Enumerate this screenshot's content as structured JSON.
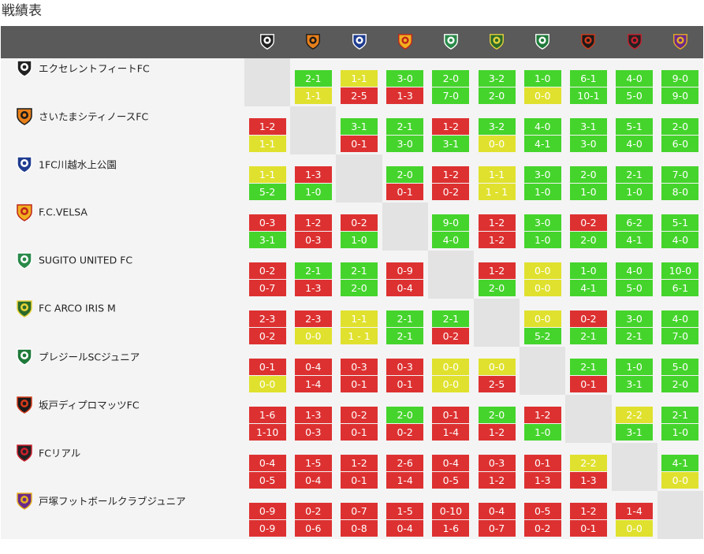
{
  "page": {
    "title": "戦績表"
  },
  "colors": {
    "win": "#45d42c",
    "loss": "#dd3131",
    "draw": "#e0e12e",
    "header": "#5a5a5a",
    "row_bg": "#f4f4f4",
    "diagonal": "#e3e3e3"
  },
  "teams": [
    {
      "name": "エクセレントフィートFC",
      "icon": "crest-effc-icon",
      "short": "EFFC",
      "c1": "#222222",
      "c2": "#ffffff"
    },
    {
      "name": "さいたまシティノースFC",
      "icon": "crest-scn-icon",
      "short": "SCN",
      "c1": "#e8801a",
      "c2": "#1a1a1a"
    },
    {
      "name": "1FC川越水上公園",
      "icon": "crest-1fc-icon",
      "short": "1",
      "c1": "#1f3c8f",
      "c2": "#ffffff"
    },
    {
      "name": "F.C.VELSA",
      "icon": "crest-velsa-icon",
      "short": "V",
      "c1": "#f0b020",
      "c2": "#c0241a"
    },
    {
      "name": "SUGITO UNITED FC",
      "icon": "crest-sugito-icon",
      "short": "S",
      "c1": "#2a8a4a",
      "c2": "#ffffff"
    },
    {
      "name": "FC ARCO IRIS M",
      "icon": "crest-arco-icon",
      "short": "AI",
      "c1": "#2b6a2a",
      "c2": "#e6d23a"
    },
    {
      "name": "プレジールSCジュニア",
      "icon": "crest-plaisir-icon",
      "short": "P",
      "c1": "#1f7a3a",
      "c2": "#ffffff"
    },
    {
      "name": "坂戸ディプロマッツFC",
      "icon": "crest-sakado-icon",
      "short": "D",
      "c1": "#1a1a1a",
      "c2": "#d43a1a"
    },
    {
      "name": "FCリアル",
      "icon": "crest-real-icon",
      "short": "R",
      "c1": "#222222",
      "c2": "#cc1f2e"
    },
    {
      "name": "戸塚フットボールクラブジュニア",
      "icon": "crest-totsuka-icon",
      "short": "T",
      "c1": "#6a2a8a",
      "c2": "#e6b020"
    }
  ],
  "results": [
    [
      null,
      [
        [
          "W",
          "2-1"
        ],
        [
          "D",
          "1-1"
        ]
      ],
      [
        [
          "D",
          "1-1"
        ],
        [
          "L",
          "2-5"
        ]
      ],
      [
        [
          "W",
          "3-0"
        ],
        [
          "L",
          "1-3"
        ]
      ],
      [
        [
          "W",
          "2-0"
        ],
        [
          "W",
          "7-0"
        ]
      ],
      [
        [
          "W",
          "3-2"
        ],
        [
          "W",
          "2-0"
        ]
      ],
      [
        [
          "W",
          "1-0"
        ],
        [
          "D",
          "0-0"
        ]
      ],
      [
        [
          "W",
          "6-1"
        ],
        [
          "W",
          "10-1"
        ]
      ],
      [
        [
          "W",
          "4-0"
        ],
        [
          "W",
          "5-0"
        ]
      ],
      [
        [
          "W",
          "9-0"
        ],
        [
          "W",
          "9-0"
        ]
      ]
    ],
    [
      [
        [
          "L",
          "1-2"
        ],
        [
          "D",
          "1-1"
        ]
      ],
      null,
      [
        [
          "W",
          "3-1"
        ],
        [
          "L",
          "0-1"
        ]
      ],
      [
        [
          "W",
          "2-1"
        ],
        [
          "W",
          "3-0"
        ]
      ],
      [
        [
          "L",
          "1-2"
        ],
        [
          "W",
          "3-1"
        ]
      ],
      [
        [
          "W",
          "3-2"
        ],
        [
          "D",
          "0-0"
        ]
      ],
      [
        [
          "W",
          "4-0"
        ],
        [
          "W",
          "4-1"
        ]
      ],
      [
        [
          "W",
          "3-1"
        ],
        [
          "W",
          "3-0"
        ]
      ],
      [
        [
          "W",
          "5-1"
        ],
        [
          "W",
          "4-0"
        ]
      ],
      [
        [
          "W",
          "2-0"
        ],
        [
          "W",
          "6-0"
        ]
      ]
    ],
    [
      [
        [
          "D",
          "1-1"
        ],
        [
          "W",
          "5-2"
        ]
      ],
      [
        [
          "L",
          "1-3"
        ],
        [
          "W",
          "1-0"
        ]
      ],
      null,
      [
        [
          "W",
          "2-0"
        ],
        [
          "L",
          "0-1"
        ]
      ],
      [
        [
          "L",
          "1-2"
        ],
        [
          "L",
          "0-2"
        ]
      ],
      [
        [
          "D",
          "1-1"
        ],
        [
          "D",
          "1 - 1"
        ]
      ],
      [
        [
          "W",
          "3-0"
        ],
        [
          "W",
          "1-0"
        ]
      ],
      [
        [
          "W",
          "2-0"
        ],
        [
          "W",
          "1-0"
        ]
      ],
      [
        [
          "W",
          "2-1"
        ],
        [
          "W",
          "1-0"
        ]
      ],
      [
        [
          "W",
          "7-0"
        ],
        [
          "W",
          "8-0"
        ]
      ]
    ],
    [
      [
        [
          "L",
          "0-3"
        ],
        [
          "W",
          "3-1"
        ]
      ],
      [
        [
          "L",
          "1-2"
        ],
        [
          "L",
          "0-3"
        ]
      ],
      [
        [
          "L",
          "0-2"
        ],
        [
          "W",
          "1-0"
        ]
      ],
      null,
      [
        [
          "W",
          "9-0"
        ],
        [
          "W",
          "4-0"
        ]
      ],
      [
        [
          "L",
          "1-2"
        ],
        [
          "L",
          "1-2"
        ]
      ],
      [
        [
          "W",
          "3-0"
        ],
        [
          "W",
          "1-0"
        ]
      ],
      [
        [
          "L",
          "0-2"
        ],
        [
          "W",
          "2-0"
        ]
      ],
      [
        [
          "W",
          "6-2"
        ],
        [
          "W",
          "4-1"
        ]
      ],
      [
        [
          "W",
          "5-1"
        ],
        [
          "W",
          "4-0"
        ]
      ]
    ],
    [
      [
        [
          "L",
          "0-2"
        ],
        [
          "L",
          "0-7"
        ]
      ],
      [
        [
          "W",
          "2-1"
        ],
        [
          "L",
          "1-3"
        ]
      ],
      [
        [
          "W",
          "2-1"
        ],
        [
          "W",
          "2-0"
        ]
      ],
      [
        [
          "L",
          "0-9"
        ],
        [
          "L",
          "0-4"
        ]
      ],
      null,
      [
        [
          "L",
          "1-2"
        ],
        [
          "W",
          "2-0"
        ]
      ],
      [
        [
          "D",
          "0-0"
        ],
        [
          "D",
          "0-0"
        ]
      ],
      [
        [
          "W",
          "1-0"
        ],
        [
          "W",
          "4-1"
        ]
      ],
      [
        [
          "W",
          "4-0"
        ],
        [
          "W",
          "5-0"
        ]
      ],
      [
        [
          "W",
          "10-0"
        ],
        [
          "W",
          "6-1"
        ]
      ]
    ],
    [
      [
        [
          "L",
          "2-3"
        ],
        [
          "L",
          "0-2"
        ]
      ],
      [
        [
          "L",
          "2-3"
        ],
        [
          "D",
          "0-0"
        ]
      ],
      [
        [
          "D",
          "1-1"
        ],
        [
          "D",
          "1 - 1"
        ]
      ],
      [
        [
          "W",
          "2-1"
        ],
        [
          "W",
          "2-1"
        ]
      ],
      [
        [
          "W",
          "2-1"
        ],
        [
          "L",
          "0-2"
        ]
      ],
      null,
      [
        [
          "D",
          "0-0"
        ],
        [
          "W",
          "5-2"
        ]
      ],
      [
        [
          "L",
          "0-2"
        ],
        [
          "W",
          "2-1"
        ]
      ],
      [
        [
          "W",
          "3-0"
        ],
        [
          "W",
          "2-1"
        ]
      ],
      [
        [
          "W",
          "4-0"
        ],
        [
          "W",
          "7-0"
        ]
      ]
    ],
    [
      [
        [
          "L",
          "0-1"
        ],
        [
          "D",
          "0-0"
        ]
      ],
      [
        [
          "L",
          "0-4"
        ],
        [
          "L",
          "1-4"
        ]
      ],
      [
        [
          "L",
          "0-3"
        ],
        [
          "L",
          "0-1"
        ]
      ],
      [
        [
          "L",
          "0-3"
        ],
        [
          "L",
          "0-1"
        ]
      ],
      [
        [
          "D",
          "0-0"
        ],
        [
          "D",
          "0-0"
        ]
      ],
      [
        [
          "D",
          "0-0"
        ],
        [
          "L",
          "2-5"
        ]
      ],
      null,
      [
        [
          "W",
          "2-1"
        ],
        [
          "L",
          "0-1"
        ]
      ],
      [
        [
          "W",
          "1-0"
        ],
        [
          "W",
          "3-1"
        ]
      ],
      [
        [
          "W",
          "5-0"
        ],
        [
          "W",
          "2-0"
        ]
      ]
    ],
    [
      [
        [
          "L",
          "1-6"
        ],
        [
          "L",
          "1-10"
        ]
      ],
      [
        [
          "L",
          "1-3"
        ],
        [
          "L",
          "0-3"
        ]
      ],
      [
        [
          "L",
          "0-2"
        ],
        [
          "L",
          "0-1"
        ]
      ],
      [
        [
          "W",
          "2-0"
        ],
        [
          "L",
          "0-2"
        ]
      ],
      [
        [
          "L",
          "0-1"
        ],
        [
          "L",
          "1-4"
        ]
      ],
      [
        [
          "W",
          "2-0"
        ],
        [
          "L",
          "1-2"
        ]
      ],
      [
        [
          "L",
          "1-2"
        ],
        [
          "W",
          "1-0"
        ]
      ],
      null,
      [
        [
          "D",
          "2-2"
        ],
        [
          "W",
          "3-1"
        ]
      ],
      [
        [
          "W",
          "2-1"
        ],
        [
          "W",
          "1-0"
        ]
      ]
    ],
    [
      [
        [
          "L",
          "0-4"
        ],
        [
          "L",
          "0-5"
        ]
      ],
      [
        [
          "L",
          "1-5"
        ],
        [
          "L",
          "0-4"
        ]
      ],
      [
        [
          "L",
          "1-2"
        ],
        [
          "L",
          "0-1"
        ]
      ],
      [
        [
          "L",
          "2-6"
        ],
        [
          "L",
          "1-4"
        ]
      ],
      [
        [
          "L",
          "0-4"
        ],
        [
          "L",
          "0-5"
        ]
      ],
      [
        [
          "L",
          "0-3"
        ],
        [
          "L",
          "1-2"
        ]
      ],
      [
        [
          "L",
          "0-1"
        ],
        [
          "L",
          "1-3"
        ]
      ],
      [
        [
          "D",
          "2-2"
        ],
        [
          "L",
          "1-3"
        ]
      ],
      null,
      [
        [
          "W",
          "4-1"
        ],
        [
          "D",
          "0-0"
        ]
      ]
    ],
    [
      [
        [
          "L",
          "0-9"
        ],
        [
          "L",
          "0-9"
        ]
      ],
      [
        [
          "L",
          "0-2"
        ],
        [
          "L",
          "0-6"
        ]
      ],
      [
        [
          "L",
          "0-7"
        ],
        [
          "L",
          "0-8"
        ]
      ],
      [
        [
          "L",
          "1-5"
        ],
        [
          "L",
          "0-4"
        ]
      ],
      [
        [
          "L",
          "0-10"
        ],
        [
          "L",
          "1-6"
        ]
      ],
      [
        [
          "L",
          "0-4"
        ],
        [
          "L",
          "0-7"
        ]
      ],
      [
        [
          "L",
          "0-5"
        ],
        [
          "L",
          "0-2"
        ]
      ],
      [
        [
          "L",
          "1-2"
        ],
        [
          "L",
          "0-1"
        ]
      ],
      [
        [
          "L",
          "1-4"
        ],
        [
          "D",
          "0-0"
        ]
      ],
      null
    ]
  ]
}
